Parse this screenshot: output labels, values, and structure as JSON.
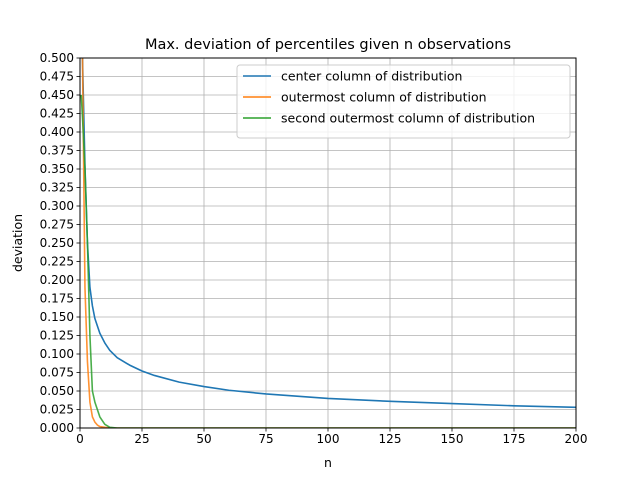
{
  "chart_data": {
    "type": "line",
    "title": "Max. deviation of percentiles given n observations",
    "xlabel": "n",
    "ylabel": "deviation",
    "xlim": [
      0,
      200
    ],
    "ylim": [
      0,
      0.5
    ],
    "x_ticks": [
      0,
      25,
      50,
      75,
      100,
      125,
      150,
      175,
      200
    ],
    "x_tick_labels": [
      "0",
      "25",
      "50",
      "75",
      "100",
      "125",
      "150",
      "175",
      "200"
    ],
    "y_ticks": [
      0,
      0.025,
      0.05,
      0.075,
      0.1,
      0.125,
      0.15,
      0.175,
      0.2,
      0.225,
      0.25,
      0.275,
      0.3,
      0.325,
      0.35,
      0.375,
      0.4,
      0.425,
      0.45,
      0.475,
      0.5
    ],
    "y_tick_labels": [
      "0.000",
      "0.025",
      "0.050",
      "0.075",
      "0.100",
      "0.125",
      "0.150",
      "0.175",
      "0.200",
      "0.225",
      "0.250",
      "0.275",
      "0.300",
      "0.325",
      "0.350",
      "0.375",
      "0.400",
      "0.425",
      "0.450",
      "0.475",
      "0.500"
    ],
    "grid": true,
    "legend_position": "top-right",
    "series": [
      {
        "name": "center column of distribution",
        "color": "#1f77b4",
        "x": [
          1,
          2,
          3,
          4,
          5,
          6,
          8,
          10,
          12,
          15,
          20,
          25,
          30,
          40,
          50,
          60,
          75,
          100,
          125,
          150,
          175,
          200
        ],
        "y": [
          0.5,
          0.354,
          0.25,
          0.19,
          0.165,
          0.148,
          0.128,
          0.115,
          0.105,
          0.095,
          0.085,
          0.077,
          0.071,
          0.062,
          0.056,
          0.051,
          0.046,
          0.04,
          0.036,
          0.033,
          0.03,
          0.028
        ]
      },
      {
        "name": "outermost column of distribution",
        "color": "#ff7f0e",
        "x": [
          1,
          2,
          3,
          4,
          5,
          6,
          7,
          8,
          10,
          12,
          15,
          20,
          30,
          50,
          100,
          150,
          200
        ],
        "y": [
          0.5,
          0.19,
          0.09,
          0.035,
          0.015,
          0.008,
          0.004,
          0.002,
          0.001,
          0.0,
          0.0,
          0.0,
          0.0,
          0.0,
          0.0,
          0.0,
          0.0
        ]
      },
      {
        "name": "second outermost column of distribution",
        "color": "#2ca02c",
        "x": [
          0.5,
          1,
          2,
          3,
          4,
          5,
          6,
          8,
          10,
          12,
          15,
          20,
          30,
          50,
          100,
          150,
          200
        ],
        "y": [
          0.45,
          0.42,
          0.35,
          0.25,
          0.125,
          0.05,
          0.035,
          0.015,
          0.005,
          0.001,
          0.0,
          0.0,
          0.0,
          0.0,
          0.0,
          0.0,
          0.0
        ]
      }
    ]
  }
}
